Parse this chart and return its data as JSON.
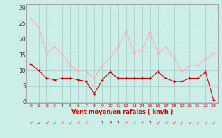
{
  "hours": [
    0,
    1,
    2,
    3,
    4,
    5,
    6,
    7,
    8,
    9,
    10,
    11,
    12,
    13,
    14,
    15,
    16,
    17,
    18,
    19,
    20,
    21,
    22,
    23
  ],
  "wind_avg": [
    12,
    10,
    7.5,
    7,
    7.5,
    7.5,
    7,
    6.5,
    2.5,
    7,
    9.5,
    7.5,
    7.5,
    7.5,
    7.5,
    7.5,
    9.5,
    7.5,
    6.5,
    6.5,
    7.5,
    7.5,
    9.5,
    0.5
  ],
  "wind_gust": [
    26.5,
    24,
    15.5,
    17.5,
    15,
    11.5,
    9.5,
    9.5,
    7.5,
    11.5,
    14,
    17.5,
    22.5,
    15.5,
    16.5,
    22,
    15.5,
    17.5,
    14,
    9.5,
    11.5,
    11.5,
    13.5,
    15.5
  ],
  "avg_color": "#cc0000",
  "gust_color": "#ffaaaa",
  "bg_color": "#cceee8",
  "grid_color": "#aacccc",
  "xlabel": "Vent moyen/en rafales ( km/h )",
  "xlabel_color": "#cc0000",
  "yticks": [
    0,
    5,
    10,
    15,
    20,
    25,
    30
  ],
  "ylim": [
    -0.5,
    31
  ],
  "xlim": [
    -0.5,
    23.5
  ]
}
